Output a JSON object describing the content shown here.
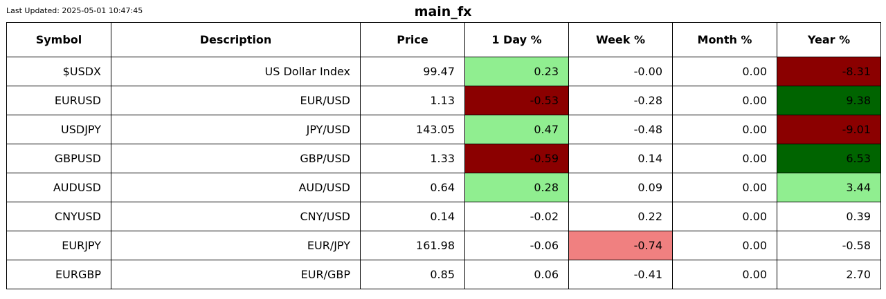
{
  "last_updated": "Last Updated: 2025-05-01 10:47:45",
  "title": "main_fx",
  "colors": {
    "positive_strong": "#006400",
    "positive": "#90ee90",
    "negative": "#f08080",
    "negative_strong": "#8b0000",
    "neutral": "#ffffff"
  },
  "chart_data": {
    "type": "table",
    "title": "main_fx",
    "columns": [
      "Symbol",
      "Description",
      "Price",
      "1 Day %",
      "Week %",
      "Month %",
      "Year %"
    ],
    "rows": [
      {
        "symbol": "$USDX",
        "description": "US Dollar Index",
        "price": "99.47",
        "day": "0.23",
        "week": "-0.00",
        "month": "0.00",
        "year": "-8.31",
        "bg": {
          "day": "positive",
          "week": "neutral",
          "month": "neutral",
          "year": "negative_strong"
        }
      },
      {
        "symbol": "EURUSD",
        "description": "EUR/USD",
        "price": "1.13",
        "day": "-0.53",
        "week": "-0.28",
        "month": "0.00",
        "year": "9.38",
        "bg": {
          "day": "negative_strong",
          "week": "neutral",
          "month": "neutral",
          "year": "positive_strong"
        }
      },
      {
        "symbol": "USDJPY",
        "description": "JPY/USD",
        "price": "143.05",
        "day": "0.47",
        "week": "-0.48",
        "month": "0.00",
        "year": "-9.01",
        "bg": {
          "day": "positive",
          "week": "neutral",
          "month": "neutral",
          "year": "negative_strong"
        }
      },
      {
        "symbol": "GBPUSD",
        "description": "GBP/USD",
        "price": "1.33",
        "day": "-0.59",
        "week": "0.14",
        "month": "0.00",
        "year": "6.53",
        "bg": {
          "day": "negative_strong",
          "week": "neutral",
          "month": "neutral",
          "year": "positive_strong"
        }
      },
      {
        "symbol": "AUDUSD",
        "description": "AUD/USD",
        "price": "0.64",
        "day": "0.28",
        "week": "0.09",
        "month": "0.00",
        "year": "3.44",
        "bg": {
          "day": "positive",
          "week": "neutral",
          "month": "neutral",
          "year": "positive"
        }
      },
      {
        "symbol": "CNYUSD",
        "description": "CNY/USD",
        "price": "0.14",
        "day": "-0.02",
        "week": "0.22",
        "month": "0.00",
        "year": "0.39",
        "bg": {
          "day": "neutral",
          "week": "neutral",
          "month": "neutral",
          "year": "neutral"
        }
      },
      {
        "symbol": "EURJPY",
        "description": "EUR/JPY",
        "price": "161.98",
        "day": "-0.06",
        "week": "-0.74",
        "month": "0.00",
        "year": "-0.58",
        "bg": {
          "day": "neutral",
          "week": "negative",
          "month": "neutral",
          "year": "neutral"
        }
      },
      {
        "symbol": "EURGBP",
        "description": "EUR/GBP",
        "price": "0.85",
        "day": "0.06",
        "week": "-0.41",
        "month": "0.00",
        "year": "2.70",
        "bg": {
          "day": "neutral",
          "week": "neutral",
          "month": "neutral",
          "year": "neutral"
        }
      }
    ]
  }
}
